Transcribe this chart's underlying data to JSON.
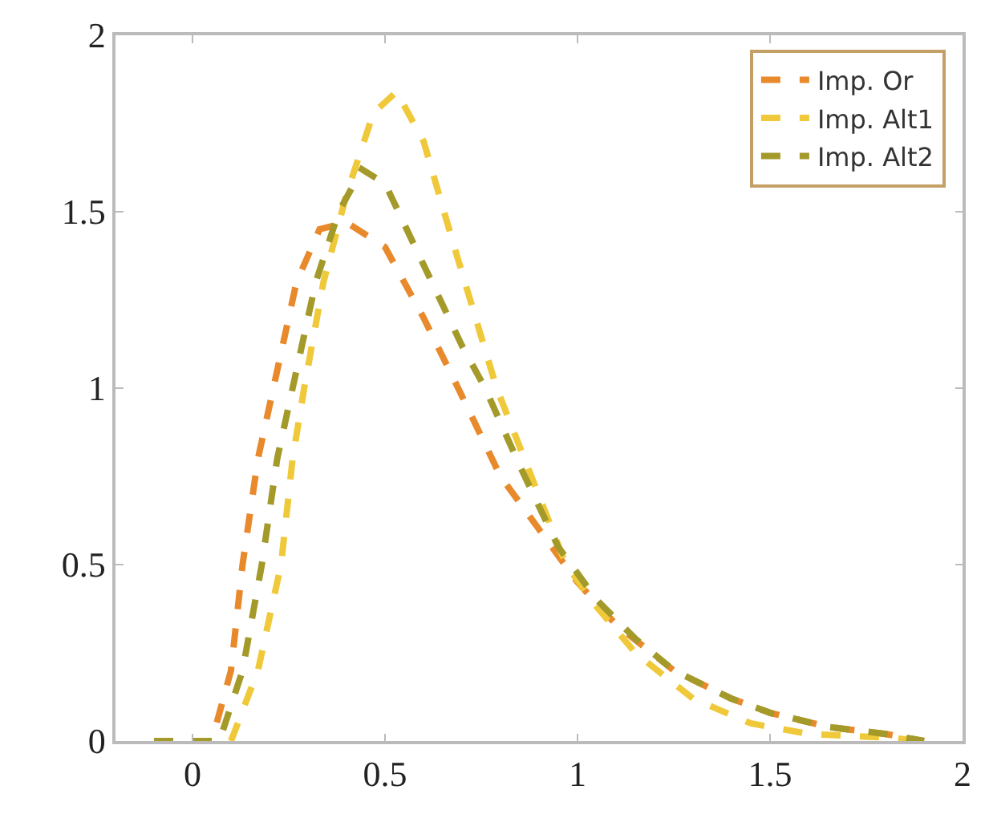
{
  "chart_data": {
    "type": "line",
    "line_style": "dashed",
    "marker": "none",
    "legend": "top right",
    "xlim": [
      -0.2,
      2
    ],
    "ylim": [
      0,
      2
    ],
    "xticks": [
      0,
      0.5,
      1,
      1.5,
      2
    ],
    "yticks": [
      0,
      0.5,
      1,
      1.5,
      2
    ],
    "series": [
      {
        "name": "Imp. Or",
        "color": "#e8892c",
        "x": [
          -0.1,
          0.05,
          0.1,
          0.13,
          0.17,
          0.21,
          0.27,
          0.33,
          0.4,
          0.5,
          0.6,
          0.69,
          0.8,
          0.9,
          1.0,
          1.1,
          1.25,
          1.4,
          1.5,
          1.65,
          1.8,
          1.9
        ],
        "values": [
          0,
          0,
          0.2,
          0.5,
          0.8,
          1.0,
          1.3,
          1.45,
          1.47,
          1.4,
          1.2,
          1.0,
          0.75,
          0.6,
          0.45,
          0.33,
          0.2,
          0.12,
          0.08,
          0.04,
          0.02,
          0
        ]
      },
      {
        "name": "Imp. Alt1",
        "color": "#f0c93a",
        "x": [
          -0.1,
          0.1,
          0.17,
          0.23,
          0.26,
          0.29,
          0.34,
          0.4,
          0.47,
          0.53,
          0.6,
          0.68,
          0.79,
          0.88,
          0.97,
          1.05,
          1.15,
          1.3,
          1.45,
          1.6,
          1.8,
          1.9
        ],
        "values": [
          0,
          0,
          0.2,
          0.5,
          0.8,
          1.0,
          1.3,
          1.55,
          1.78,
          1.84,
          1.7,
          1.4,
          1.0,
          0.75,
          0.5,
          0.38,
          0.25,
          0.12,
          0.05,
          0.02,
          0.01,
          0
        ]
      },
      {
        "name": "Imp. Alt2",
        "color": "#a39a2a",
        "x": [
          -0.1,
          0.07,
          0.13,
          0.18,
          0.22,
          0.26,
          0.32,
          0.38,
          0.44,
          0.5,
          0.6,
          0.7,
          0.76,
          0.85,
          0.95,
          1.05,
          1.15,
          1.25,
          1.4,
          1.5,
          1.65,
          1.8,
          1.9
        ],
        "values": [
          0,
          0,
          0.2,
          0.5,
          0.8,
          1.0,
          1.3,
          1.5,
          1.62,
          1.58,
          1.35,
          1.12,
          1.0,
          0.78,
          0.55,
          0.4,
          0.29,
          0.2,
          0.12,
          0.08,
          0.04,
          0.02,
          0
        ]
      }
    ]
  }
}
